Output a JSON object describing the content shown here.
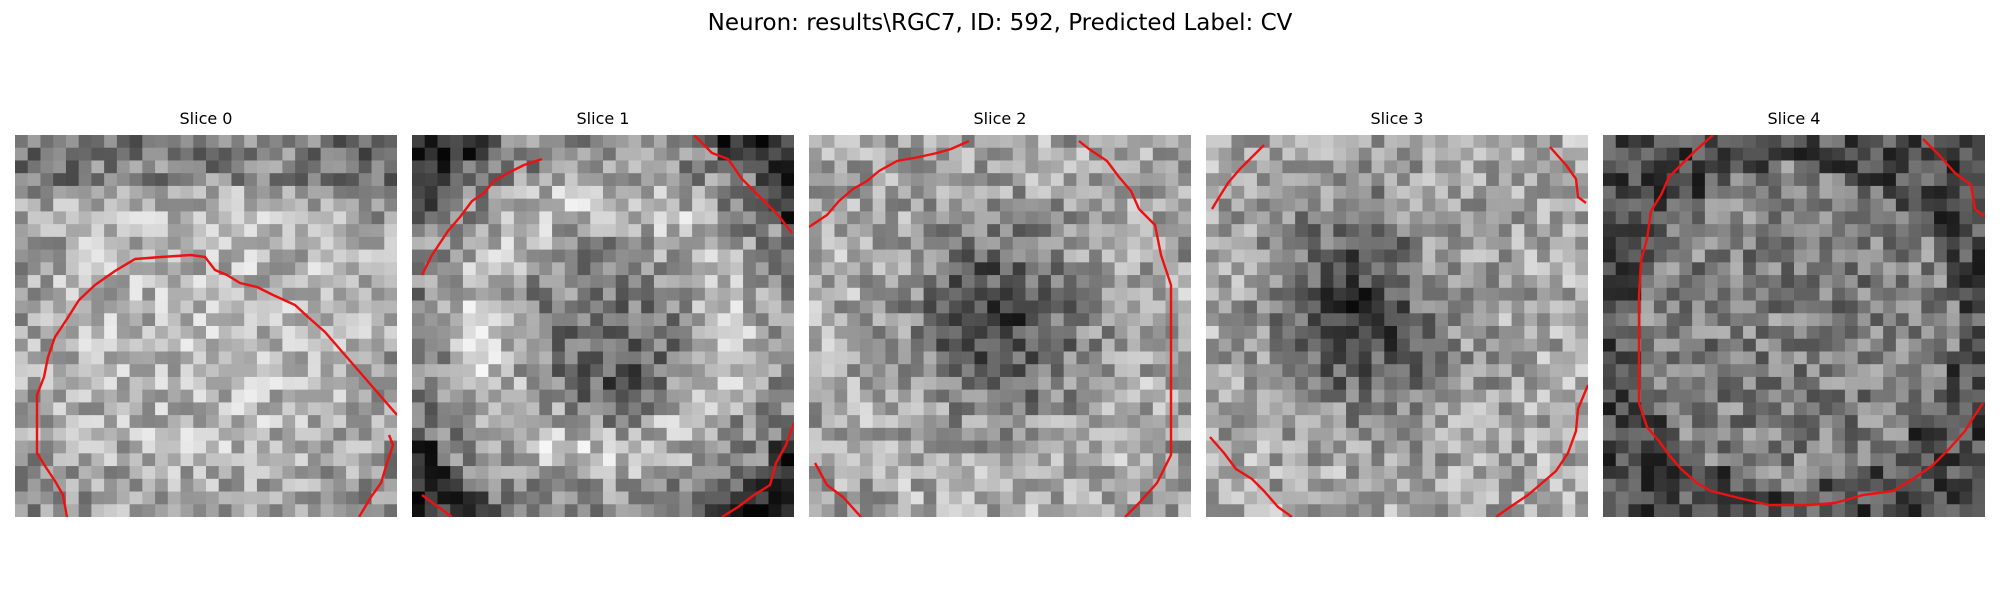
{
  "figure": {
    "title": "Neuron: results\\RGC7, ID: 592, Predicted Label: CV"
  },
  "panels": [
    {
      "title": "Slice 0",
      "pattern": "bright-center"
    },
    {
      "title": "Slice 1",
      "pattern": "bright-ring"
    },
    {
      "title": "Slice 2",
      "pattern": "dark-center"
    },
    {
      "title": "Slice 3",
      "pattern": "dark-upper-left"
    },
    {
      "title": "Slice 4",
      "pattern": "mottled-dark-edges"
    }
  ],
  "colors": {
    "contour": "#ee1111",
    "background": "#ffffff"
  }
}
